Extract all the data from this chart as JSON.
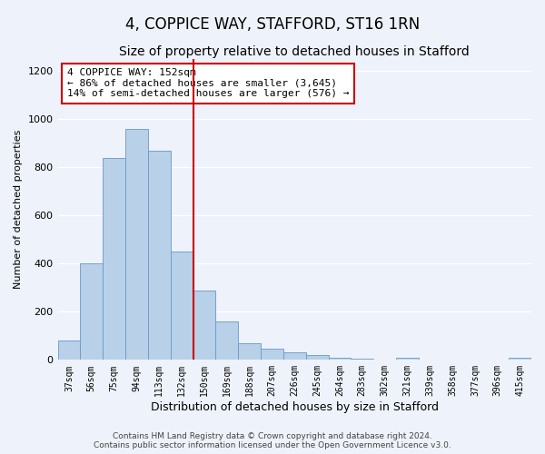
{
  "title": "4, COPPICE WAY, STAFFORD, ST16 1RN",
  "subtitle": "Size of property relative to detached houses in Stafford",
  "xlabel": "Distribution of detached houses by size in Stafford",
  "ylabel": "Number of detached properties",
  "categories": [
    "37sqm",
    "56sqm",
    "75sqm",
    "94sqm",
    "113sqm",
    "132sqm",
    "150sqm",
    "169sqm",
    "188sqm",
    "207sqm",
    "226sqm",
    "245sqm",
    "264sqm",
    "283sqm",
    "302sqm",
    "321sqm",
    "339sqm",
    "358sqm",
    "377sqm",
    "396sqm",
    "415sqm"
  ],
  "values": [
    80,
    400,
    840,
    960,
    870,
    450,
    290,
    160,
    70,
    45,
    30,
    20,
    10,
    5,
    0,
    10,
    0,
    0,
    0,
    0,
    10
  ],
  "bar_color": "#b8d0e8",
  "bar_edge_color": "#6699cc",
  "property_line_index": 6,
  "property_line_color": "#cc0000",
  "annotation_text": "4 COPPICE WAY: 152sqm\n← 86% of detached houses are smaller (3,645)\n14% of semi-detached houses are larger (576) →",
  "annotation_box_color": "#ffffff",
  "annotation_box_edge_color": "#cc0000",
  "ylim": [
    0,
    1250
  ],
  "yticks": [
    0,
    200,
    400,
    600,
    800,
    1000,
    1200
  ],
  "footer1": "Contains HM Land Registry data © Crown copyright and database right 2024.",
  "footer2": "Contains public sector information licensed under the Open Government Licence v3.0.",
  "bg_color": "#eef2fa",
  "grid_color": "#ffffff",
  "title_fontsize": 12,
  "subtitle_fontsize": 10,
  "xlabel_fontsize": 9,
  "ylabel_fontsize": 8,
  "tick_fontsize": 7,
  "ytick_fontsize": 8,
  "footer_fontsize": 6.5,
  "annotation_fontsize": 8
}
